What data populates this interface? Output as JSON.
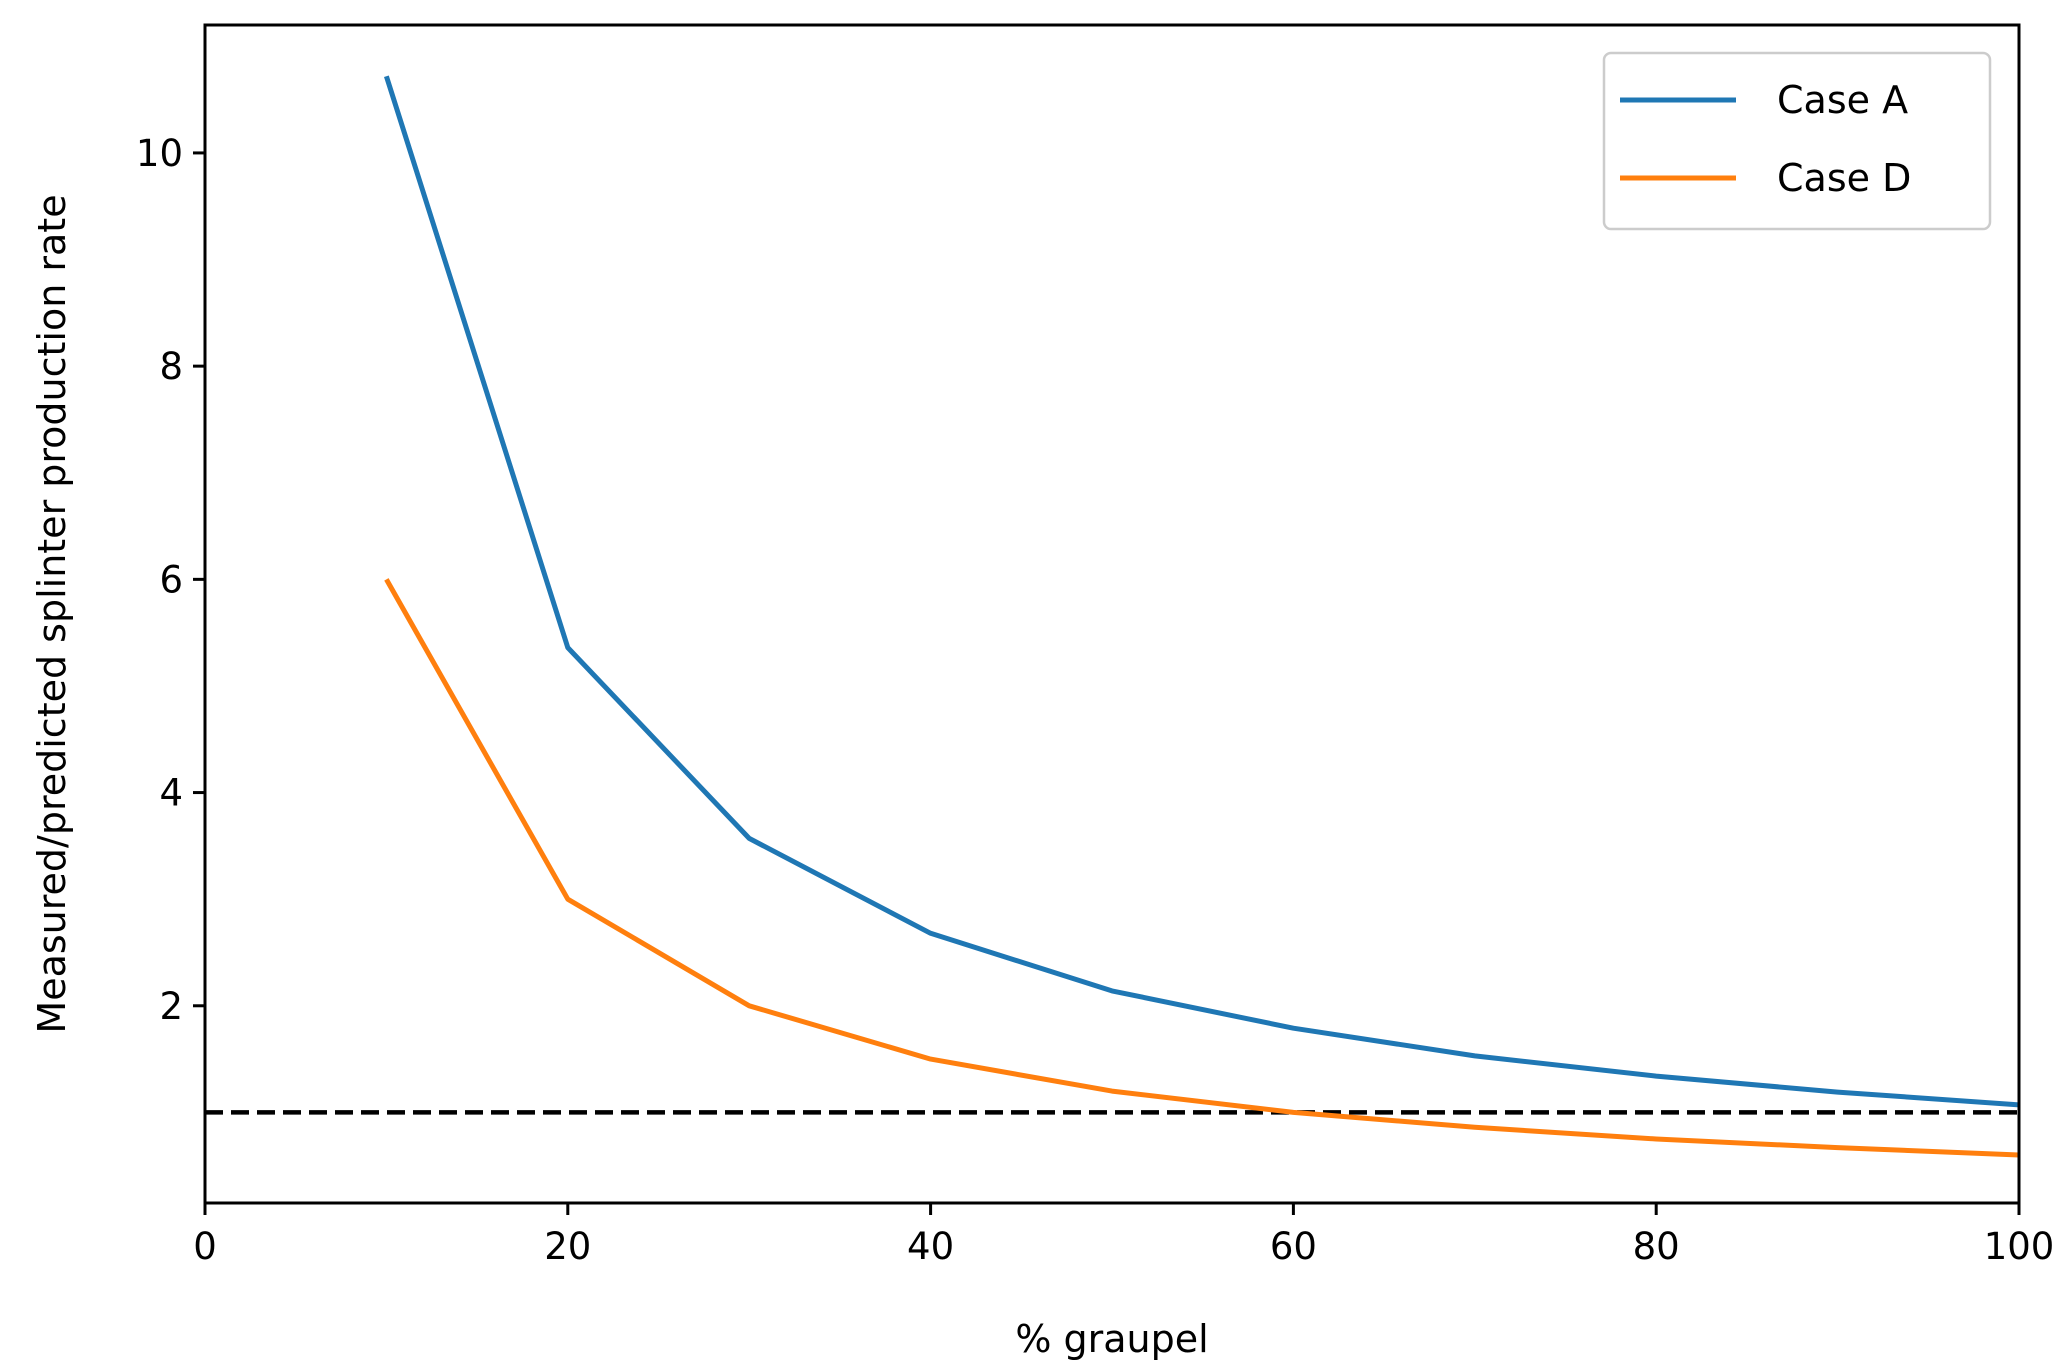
{
  "chart_data": {
    "type": "line",
    "title": "",
    "xlabel": "% graupel",
    "ylabel": "Measured/predicted splinter production rate",
    "xlim": [
      0,
      100
    ],
    "ylim": [
      0.15,
      11.2
    ],
    "xticks": [
      0,
      20,
      40,
      60,
      80,
      100
    ],
    "yticks": [
      2,
      4,
      6,
      8,
      10
    ],
    "grid": false,
    "legend_position": "top-right",
    "x": [
      10,
      20,
      30,
      40,
      50,
      60,
      70,
      80,
      90,
      100
    ],
    "series": [
      {
        "name": "Case A",
        "color": "#1f77b4",
        "values": [
          10.72,
          5.36,
          3.57,
          2.68,
          2.14,
          1.79,
          1.53,
          1.34,
          1.19,
          1.07
        ]
      },
      {
        "name": "Case D",
        "color": "#ff7f0e",
        "values": [
          6.0,
          3.0,
          2.0,
          1.5,
          1.2,
          1.0,
          0.86,
          0.75,
          0.67,
          0.6
        ]
      }
    ],
    "reference_line": {
      "y": 1.0,
      "style": "dashed",
      "color": "#000000"
    }
  }
}
